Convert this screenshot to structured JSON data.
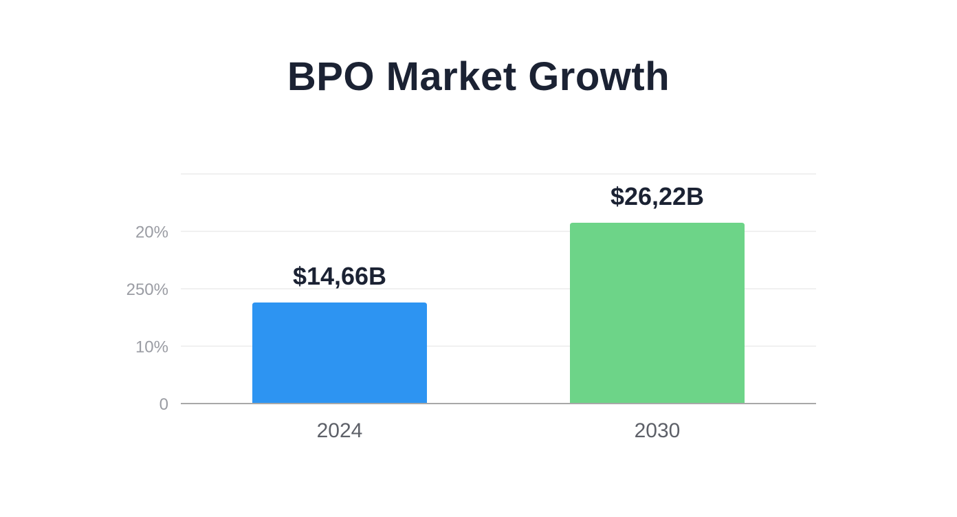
{
  "chart_data": {
    "type": "bar",
    "title": "BPO Market Growth",
    "categories": [
      "2024",
      "2030"
    ],
    "values": [
      14.66,
      26.22
    ],
    "data_labels": [
      "$14,66B",
      "$26,22B"
    ],
    "colors": [
      "#2d94f2",
      "#6dd488"
    ],
    "y_tick_labels": [
      "0",
      "10%",
      "250%",
      "20%",
      ""
    ],
    "ylim": [
      0,
      33.3
    ],
    "grid": true,
    "xlabel": "",
    "ylabel": ""
  }
}
